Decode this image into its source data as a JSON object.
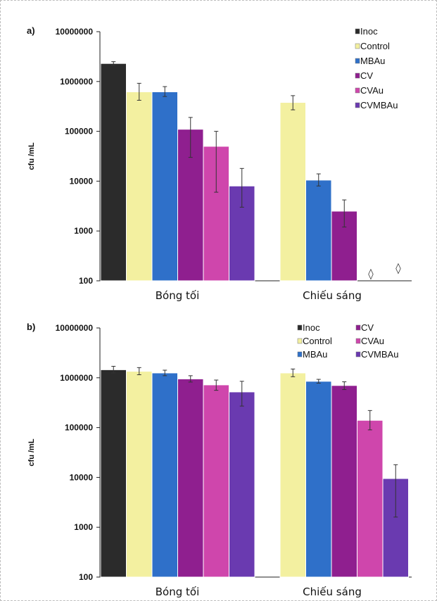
{
  "colors": {
    "Inoc": "#2b2b2b",
    "Control": "#f3f0a0",
    "MBAu": "#2f70c9",
    "CV": "#8f1f8f",
    "CVAu": "#cf46ac",
    "CVMBAu": "#6a3ab0"
  },
  "chart_data": [
    {
      "type": "bar",
      "panel_label": "a)",
      "ylabel": "cfu /mL",
      "yscale": "log",
      "ylim": [
        100,
        10000000
      ],
      "yticks": [
        "100",
        "1000",
        "10000",
        "100000",
        "1000000",
        "10000000"
      ],
      "categories": [
        "Bóng tối",
        "Chiếu sáng"
      ],
      "legend_placement": "top-right",
      "legend_layout": "one-column",
      "markers": [
        "◊",
        "◊"
      ],
      "series": [
        {
          "name": "Inoc",
          "values": [
            2300000,
            null
          ],
          "err_low": [
            2100000,
            null
          ],
          "err_high": [
            2500000,
            null
          ]
        },
        {
          "name": "Control",
          "values": [
            620000,
            380000
          ],
          "err_low": [
            420000,
            270000
          ],
          "err_high": [
            920000,
            520000
          ]
        },
        {
          "name": "MBAu",
          "values": [
            620000,
            10500
          ],
          "err_low": [
            500000,
            8000
          ],
          "err_high": [
            790000,
            14000
          ]
        },
        {
          "name": "CV",
          "values": [
            110000,
            2500
          ],
          "err_low": [
            30000,
            1200
          ],
          "err_high": [
            190000,
            4200
          ]
        },
        {
          "name": "CVAu",
          "values": [
            50000,
            null
          ],
          "err_low": [
            6000,
            null
          ],
          "err_high": [
            100000,
            null
          ]
        },
        {
          "name": "CVMBAu",
          "values": [
            8000,
            null
          ],
          "err_low": [
            3000,
            null
          ],
          "err_high": [
            18000,
            null
          ]
        }
      ]
    },
    {
      "type": "bar",
      "panel_label": "b)",
      "ylabel": "cfu /mL",
      "yscale": "log",
      "ylim": [
        100,
        10000000
      ],
      "yticks": [
        "100",
        "1000",
        "10000",
        "100000",
        "1000000",
        "10000000"
      ],
      "categories": [
        "Bóng tối",
        "Chiếu sáng"
      ],
      "legend_placement": "top-right",
      "legend_layout": "two-column",
      "markers": [],
      "series": [
        {
          "name": "Inoc",
          "values": [
            1450000,
            null
          ],
          "err_low": [
            1250000,
            null
          ],
          "err_high": [
            1700000,
            null
          ]
        },
        {
          "name": "Control",
          "values": [
            1350000,
            1250000
          ],
          "err_low": [
            1150000,
            1050000
          ],
          "err_high": [
            1600000,
            1500000
          ]
        },
        {
          "name": "MBAu",
          "values": [
            1250000,
            850000
          ],
          "err_low": [
            1100000,
            780000
          ],
          "err_high": [
            1420000,
            930000
          ]
        },
        {
          "name": "CV",
          "values": [
            950000,
            700000
          ],
          "err_low": [
            820000,
            580000
          ],
          "err_high": [
            1100000,
            830000
          ]
        },
        {
          "name": "CVAu",
          "values": [
            720000,
            140000
          ],
          "err_low": [
            560000,
            90000
          ],
          "err_high": [
            900000,
            220000
          ]
        },
        {
          "name": "CVMBAu",
          "values": [
            520000,
            9500
          ],
          "err_low": [
            270000,
            1600
          ],
          "err_high": [
            850000,
            18000
          ]
        }
      ]
    }
  ]
}
